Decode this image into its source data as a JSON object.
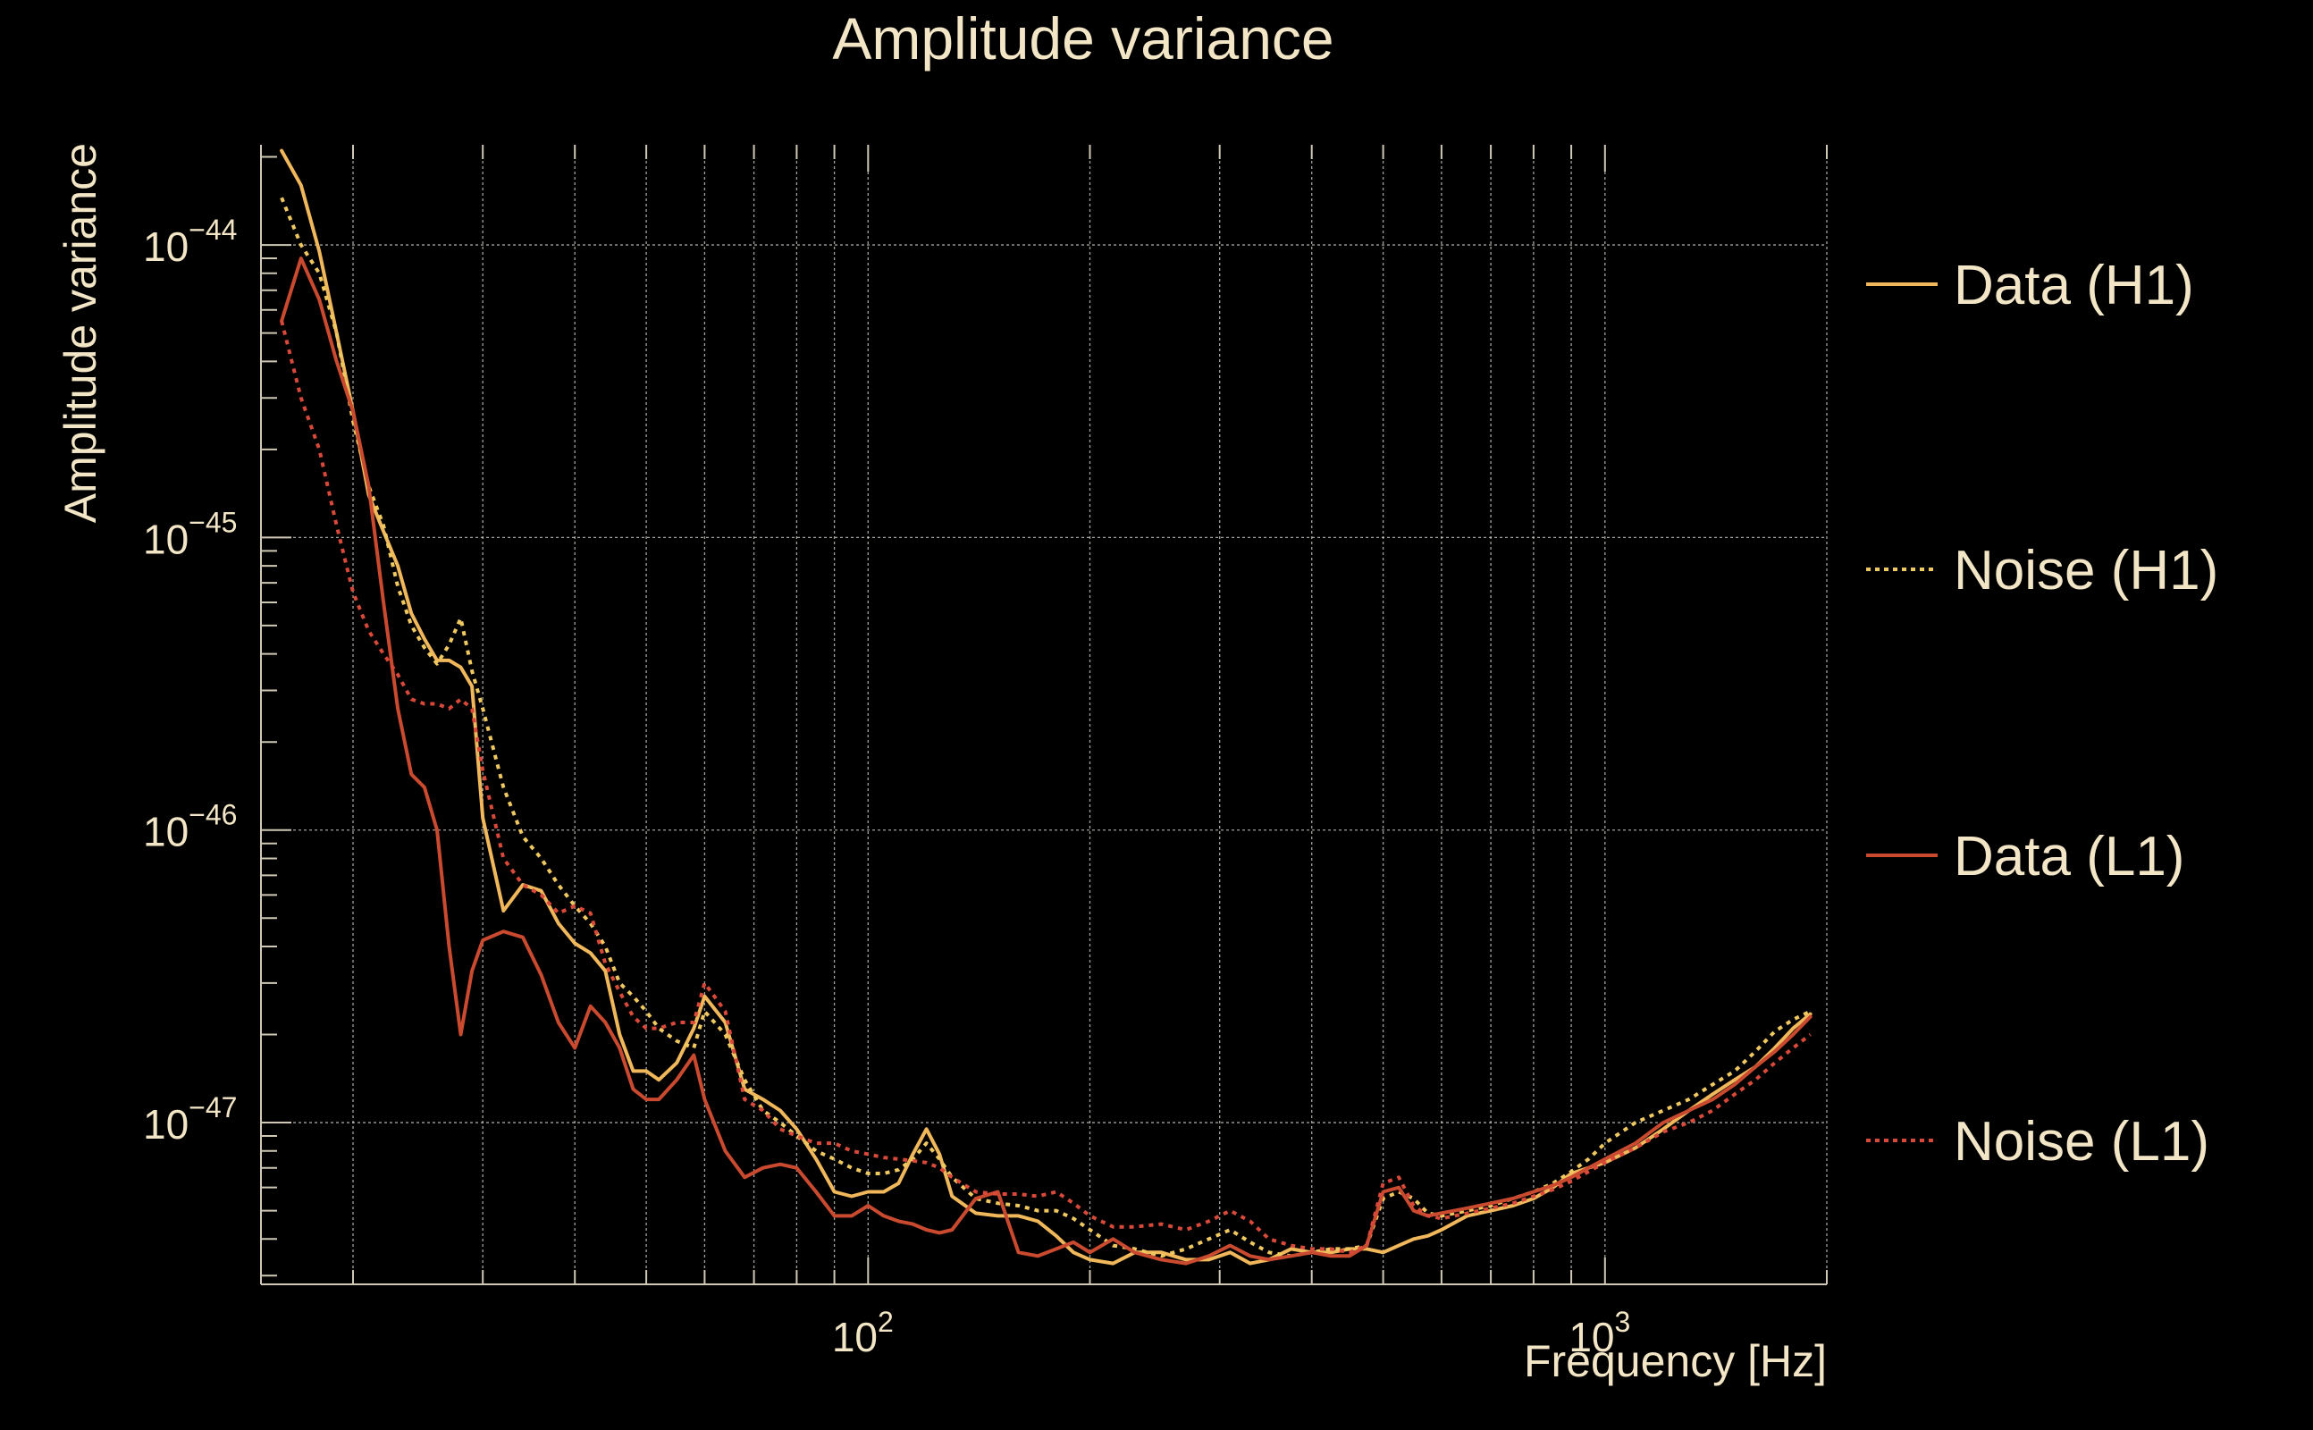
{
  "chart_data": {
    "type": "line",
    "title": "Amplitude variance",
    "xlabel": "Frequency [Hz]",
    "ylabel": "Amplitude variance",
    "xscale": "log",
    "yscale": "log",
    "xlim": [
      15,
      2000
    ],
    "ylim": [
      2.8e-48,
      2.2e-44
    ],
    "grid": true,
    "legend_position": "right",
    "x_tick_labels": [
      {
        "base": "10",
        "exp": "2",
        "value": 100
      },
      {
        "base": "10",
        "exp": "3",
        "value": 1000
      }
    ],
    "y_tick_labels": [
      {
        "base": "10",
        "exp": "−44",
        "value": 1e-44
      },
      {
        "base": "10",
        "exp": "−45",
        "value": 1e-45
      },
      {
        "base": "10",
        "exp": "−46",
        "value": 1e-46
      },
      {
        "base": "10",
        "exp": "−47",
        "value": 1e-47
      }
    ],
    "series": [
      {
        "name": "Data (H1)",
        "color": "#f0b85a",
        "style": "solid",
        "x": [
          16,
          17,
          18,
          19,
          20,
          21,
          22,
          23,
          24,
          25,
          26,
          27,
          28,
          29,
          30,
          32,
          34,
          36,
          38,
          40,
          42,
          44,
          46,
          48,
          50,
          52,
          55,
          58,
          60,
          64,
          68,
          72,
          76,
          80,
          85,
          90,
          95,
          100,
          105,
          110,
          115,
          120,
          125,
          130,
          140,
          150,
          160,
          170,
          180,
          190,
          200,
          215,
          230,
          250,
          270,
          290,
          310,
          330,
          350,
          375,
          400,
          425,
          450,
          475,
          500,
          525,
          550,
          575,
          600,
          650,
          700,
          750,
          800,
          850,
          900,
          950,
          1000,
          1100,
          1200,
          1300,
          1400,
          1500,
          1600,
          1700,
          1800,
          1900
        ],
        "y": [
          2.1e-44,
          1.6e-44,
          9.5e-45,
          5e-45,
          2.7e-45,
          1.4e-45,
          1.05e-45,
          8e-46,
          5.5e-46,
          4.5e-46,
          3.8e-46,
          3.8e-46,
          3.6e-46,
          3.1e-46,
          1.1e-46,
          5.3e-47,
          6.5e-47,
          6.2e-47,
          4.8e-47,
          4.1e-47,
          3.8e-47,
          3.3e-47,
          2e-47,
          1.5e-47,
          1.5e-47,
          1.4e-47,
          1.6e-47,
          2.1e-47,
          2.7e-47,
          2.2e-47,
          1.3e-47,
          1.2e-47,
          1.1e-47,
          9.5e-48,
          7.5e-48,
          5.8e-48,
          5.6e-48,
          5.8e-48,
          5.8e-48,
          6.2e-48,
          7.8e-48,
          9.5e-48,
          7.8e-48,
          5.6e-48,
          4.9e-48,
          4.8e-48,
          4.8e-48,
          4.6e-48,
          4.1e-48,
          3.6e-48,
          3.4e-48,
          3.3e-48,
          3.6e-48,
          3.6e-48,
          3.4e-48,
          3.4e-48,
          3.6e-48,
          3.3e-48,
          3.4e-48,
          3.7e-48,
          3.6e-48,
          3.6e-48,
          3.7e-48,
          3.7e-48,
          3.6e-48,
          3.8e-48,
          4e-48,
          4.1e-48,
          4.3e-48,
          4.8e-48,
          5e-48,
          5.2e-48,
          5.5e-48,
          6e-48,
          6.7e-48,
          7e-48,
          7.3e-48,
          8.2e-48,
          9.5e-48,
          1.1e-47,
          1.25e-47,
          1.4e-47,
          1.55e-47,
          1.8e-47,
          2.1e-47,
          2.35e-47
        ]
      },
      {
        "name": "Noise (H1)",
        "color": "#f0c860",
        "style": "dotted",
        "x": [
          16,
          17,
          18,
          19,
          20,
          21,
          22,
          23,
          24,
          25,
          26,
          27,
          28,
          29,
          30,
          32,
          34,
          36,
          38,
          40,
          42,
          44,
          46,
          48,
          50,
          52,
          55,
          58,
          60,
          64,
          68,
          72,
          76,
          80,
          85,
          90,
          95,
          100,
          105,
          110,
          115,
          120,
          125,
          130,
          140,
          150,
          160,
          170,
          180,
          190,
          200,
          215,
          230,
          250,
          270,
          290,
          310,
          330,
          350,
          375,
          400,
          425,
          450,
          475,
          500,
          525,
          550,
          575,
          600,
          650,
          700,
          750,
          800,
          850,
          900,
          950,
          1000,
          1100,
          1200,
          1300,
          1400,
          1500,
          1600,
          1700,
          1800,
          1900
        ],
        "y": [
          1.45e-44,
          1e-44,
          8e-45,
          5e-45,
          2.5e-45,
          1.5e-45,
          1.1e-45,
          6.8e-46,
          5e-46,
          4.2e-46,
          3.7e-46,
          4.3e-46,
          5.3e-46,
          3.5e-46,
          2.6e-46,
          1.4e-46,
          9.5e-47,
          8e-47,
          6.5e-47,
          5.5e-47,
          4.8e-47,
          4e-47,
          3e-47,
          2.7e-47,
          2.4e-47,
          2.1e-47,
          1.9e-47,
          1.8e-47,
          2.4e-47,
          2e-47,
          1.4e-47,
          1.1e-47,
          1e-47,
          9e-48,
          8e-48,
          7.5e-48,
          7e-48,
          6.7e-48,
          6.7e-48,
          6.9e-48,
          7.5e-48,
          8.5e-48,
          7.5e-48,
          6.5e-48,
          5.5e-48,
          5.3e-48,
          5.2e-48,
          5e-48,
          5e-48,
          4.7e-48,
          4.3e-48,
          3.8e-48,
          3.7e-48,
          3.5e-48,
          3.7e-48,
          4e-48,
          4.3e-48,
          3.9e-48,
          3.6e-48,
          3.5e-48,
          3.6e-48,
          3.7e-48,
          3.7e-48,
          3.8e-48,
          5.5e-48,
          5.8e-48,
          5.5e-48,
          4.9e-48,
          4.8e-48,
          5e-48,
          5.2e-48,
          5.5e-48,
          5.8e-48,
          6.2e-48,
          6.8e-48,
          7.5e-48,
          8.5e-48,
          1e-47,
          1.1e-47,
          1.2e-47,
          1.35e-47,
          1.5e-47,
          1.75e-47,
          2.05e-47,
          2.25e-47,
          2.4e-47
        ]
      },
      {
        "name": "Data (L1)",
        "color": "#c94a2e",
        "style": "solid",
        "x": [
          16,
          17,
          18,
          19,
          20,
          21,
          22,
          23,
          24,
          25,
          26,
          27,
          28,
          29,
          30,
          32,
          34,
          36,
          38,
          40,
          42,
          44,
          46,
          48,
          50,
          52,
          55,
          58,
          60,
          64,
          68,
          72,
          76,
          80,
          85,
          90,
          95,
          100,
          105,
          110,
          115,
          120,
          125,
          130,
          140,
          150,
          160,
          170,
          180,
          190,
          200,
          215,
          230,
          250,
          270,
          290,
          310,
          330,
          350,
          375,
          400,
          425,
          450,
          475,
          500,
          525,
          550,
          575,
          600,
          650,
          700,
          750,
          800,
          850,
          900,
          950,
          1000,
          1100,
          1200,
          1300,
          1400,
          1500,
          1600,
          1700,
          1800,
          1900
        ],
        "y": [
          5.5e-45,
          9e-45,
          6.5e-45,
          4e-45,
          2.7e-45,
          1.5e-45,
          6e-46,
          2.6e-46,
          1.55e-46,
          1.4e-46,
          1e-46,
          4e-47,
          2e-47,
          3.3e-47,
          4.2e-47,
          4.5e-47,
          4.3e-47,
          3.2e-47,
          2.2e-47,
          1.8e-47,
          2.5e-47,
          2.2e-47,
          1.8e-47,
          1.3e-47,
          1.2e-47,
          1.2e-47,
          1.4e-47,
          1.7e-47,
          1.2e-47,
          8e-48,
          6.5e-48,
          7e-48,
          7.2e-48,
          7e-48,
          5.8e-48,
          4.8e-48,
          4.8e-48,
          5.2e-48,
          4.8e-48,
          4.6e-48,
          4.5e-48,
          4.3e-48,
          4.2e-48,
          4.3e-48,
          5.5e-48,
          5.8e-48,
          3.6e-48,
          3.5e-48,
          3.7e-48,
          3.9e-48,
          3.6e-48,
          4e-48,
          3.6e-48,
          3.4e-48,
          3.3e-48,
          3.5e-48,
          3.8e-48,
          3.5e-48,
          3.4e-48,
          3.5e-48,
          3.6e-48,
          3.5e-48,
          3.5e-48,
          3.8e-48,
          5.8e-48,
          6e-48,
          5e-48,
          4.8e-48,
          4.9e-48,
          5.1e-48,
          5.3e-48,
          5.5e-48,
          5.8e-48,
          6.1e-48,
          6.5e-48,
          7e-48,
          7.5e-48,
          8.5e-48,
          1e-47,
          1.1e-47,
          1.2e-47,
          1.35e-47,
          1.55e-47,
          1.75e-47,
          2e-47,
          2.3e-47
        ]
      },
      {
        "name": "Noise (L1)",
        "color": "#d8493a",
        "style": "dotted",
        "x": [
          16,
          17,
          18,
          19,
          20,
          21,
          22,
          23,
          24,
          25,
          26,
          27,
          28,
          29,
          30,
          32,
          34,
          36,
          38,
          40,
          42,
          44,
          46,
          48,
          50,
          52,
          55,
          58,
          60,
          64,
          68,
          72,
          76,
          80,
          85,
          90,
          95,
          100,
          105,
          110,
          115,
          120,
          125,
          130,
          140,
          150,
          160,
          170,
          180,
          190,
          200,
          215,
          230,
          250,
          270,
          290,
          310,
          330,
          350,
          375,
          400,
          425,
          450,
          475,
          500,
          525,
          550,
          575,
          600,
          650,
          700,
          750,
          800,
          850,
          900,
          950,
          1000,
          1100,
          1200,
          1300,
          1400,
          1500,
          1600,
          1700,
          1800,
          1900
        ],
        "y": [
          5.5e-45,
          3e-45,
          2e-45,
          1.1e-45,
          6.5e-46,
          4.8e-46,
          4e-46,
          3.4e-46,
          2.8e-46,
          2.7e-46,
          2.7e-46,
          2.6e-46,
          2.8e-46,
          2.6e-46,
          1.6e-46,
          8e-47,
          6.5e-47,
          6e-47,
          5.2e-47,
          5.5e-47,
          5.2e-47,
          3.5e-47,
          2.8e-47,
          2.3e-47,
          2.1e-47,
          2.1e-47,
          2.2e-47,
          2.2e-47,
          3e-47,
          2.4e-47,
          1.2e-47,
          1.1e-47,
          9.5e-48,
          9e-48,
          8.5e-48,
          8.5e-48,
          8e-48,
          7.8e-48,
          7.6e-48,
          7.5e-48,
          7.4e-48,
          7.3e-48,
          7e-48,
          6.5e-48,
          5.8e-48,
          5.7e-48,
          5.7e-48,
          5.6e-48,
          5.8e-48,
          5.3e-48,
          4.8e-48,
          4.4e-48,
          4.4e-48,
          4.5e-48,
          4.3e-48,
          4.6e-48,
          5e-48,
          4.6e-48,
          4e-48,
          3.8e-48,
          3.7e-48,
          3.7e-48,
          3.6e-48,
          3.8e-48,
          6.2e-48,
          6.5e-48,
          5.2e-48,
          4.8e-48,
          4.7e-48,
          4.9e-48,
          5.1e-48,
          5.3e-48,
          5.6e-48,
          5.9e-48,
          6.3e-48,
          6.8e-48,
          7.3e-48,
          8.2e-48,
          9.3e-48,
          1e-47,
          1.1e-47,
          1.25e-47,
          1.4e-47,
          1.6e-47,
          1.8e-47,
          2e-47
        ]
      }
    ]
  }
}
